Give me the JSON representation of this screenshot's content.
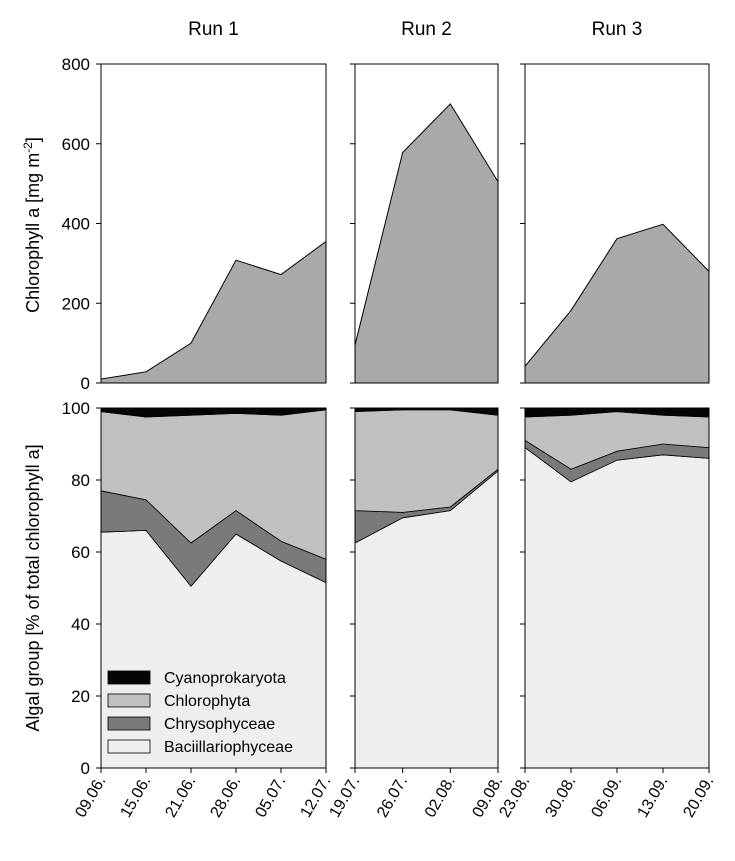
{
  "chart_data": {
    "type": "area",
    "runs": [
      {
        "title": "Run 1",
        "dates": [
          "09.06.",
          "15.06.",
          "21.06.",
          "28.06.",
          "05.07.",
          "12.07."
        ]
      },
      {
        "title": "Run 2",
        "dates": [
          "19.07.",
          "26.07.",
          "02.08.",
          "09.08."
        ]
      },
      {
        "title": "Run 3",
        "dates": [
          "23.08.",
          "30.08.",
          "06.09.",
          "13.09.",
          "20.09."
        ]
      }
    ],
    "top_panel": {
      "ylabel": "Chlorophyll a [mg m-2]",
      "ylabel_main": "Chlorophyll a [mg m",
      "ylabel_sup": "-2",
      "ylabel_end": "]",
      "ylim": [
        0,
        800
      ],
      "yticks": [
        0,
        200,
        400,
        600,
        800
      ],
      "fill_color": "#a9a9a9",
      "series": [
        [
          10,
          28,
          100,
          308,
          272,
          355
        ],
        [
          95,
          578,
          700,
          505
        ],
        [
          42,
          182,
          362,
          398,
          280
        ]
      ]
    },
    "bottom_panel": {
      "ylabel": "Algal group [% of total chlorophyll a]",
      "ylim": [
        0,
        100
      ],
      "yticks": [
        0,
        20,
        40,
        60,
        80,
        100
      ],
      "groups": [
        {
          "name": "Baciillariophyceae",
          "color": "#eeeeee"
        },
        {
          "name": "Chrysophyceae",
          "color": "#7a7a7a"
        },
        {
          "name": "Chlorophyta",
          "color": "#c0c0c0"
        },
        {
          "name": "Cyanoprokaryota",
          "color": "#050505"
        }
      ],
      "legend_order": [
        "Cyanoprokaryota",
        "Chlorophyta",
        "Chrysophyceae",
        "Baciillariophyceae"
      ],
      "cumulative": [
        {
          "Baciillariophyceae": [
            65.5,
            66,
            50.5,
            65,
            57.5,
            51.5
          ],
          "Chrysophyceae": [
            77,
            74.5,
            62.5,
            71.5,
            63,
            58
          ],
          "Chlorophyta": [
            99,
            97.5,
            98,
            98.5,
            98,
            99.5
          ],
          "Cyanoprokaryota": [
            100,
            100,
            100,
            100,
            100,
            100
          ]
        },
        {
          "Baciillariophyceae": [
            62.5,
            69.5,
            71.5,
            82.5
          ],
          "Chrysophyceae": [
            71.5,
            71,
            72.5,
            83
          ],
          "Chlorophyta": [
            99,
            99.5,
            99.5,
            98
          ],
          "Cyanoprokaryota": [
            100,
            100,
            100,
            100
          ]
        },
        {
          "Baciillariophyceae": [
            89,
            79.5,
            85.5,
            87,
            86
          ],
          "Chrysophyceae": [
            91,
            83,
            88,
            90,
            89
          ],
          "Chlorophyta": [
            97.5,
            98,
            99,
            98,
            97.5
          ],
          "Cyanoprokaryota": [
            100,
            100,
            100,
            100,
            100
          ]
        }
      ]
    }
  }
}
